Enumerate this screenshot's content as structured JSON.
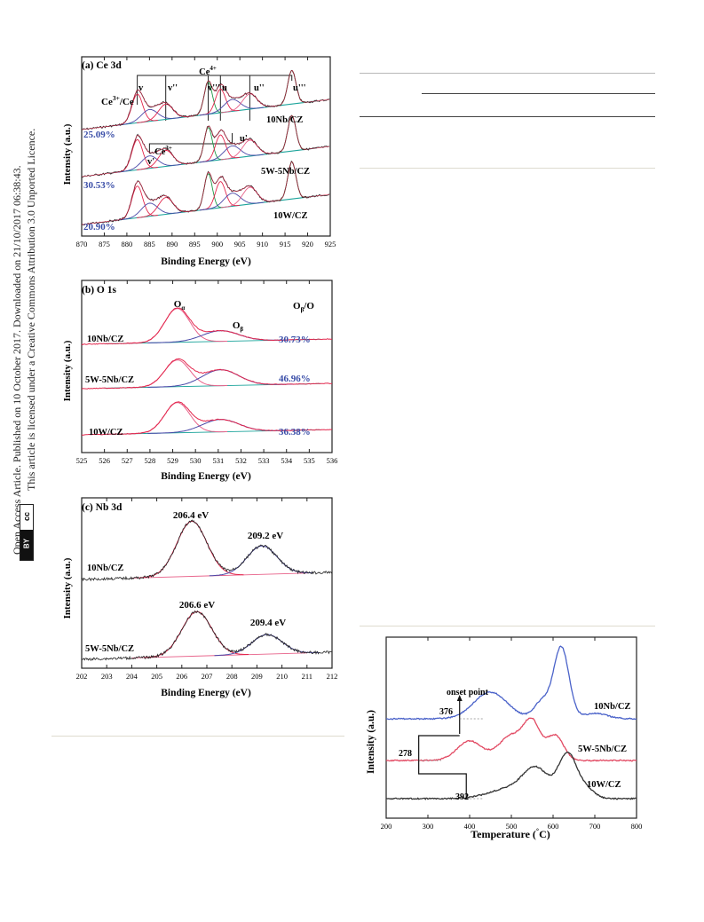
{
  "license": {
    "line1": "Open Access Article. Published on 10 October 2017. Downloaded on 21/10/2017 06:38:43.",
    "line2": "This article is licensed under a Creative Commons Attribution 3.0 Unported Licence.",
    "cc_label": "cc",
    "by_label": "BY"
  },
  "colors": {
    "data": "#222222",
    "fit_red": "#e3264c",
    "fit_blue": "#4a48a8",
    "fit_green": "#1f9a4a",
    "fit_pink": "#e8628a",
    "baseline": "#1aa39a",
    "ratio_text": "#3a4ea8",
    "tpd_blue": "#4a62c9",
    "tpd_red": "#e24a63",
    "tpd_dark": "#333333"
  },
  "chart_data": [
    {
      "id": "ce3d",
      "type": "line",
      "title": "(a) Ce 3d",
      "xlabel": "Binding Energy (eV)",
      "ylabel": "Intensity (a.u.)",
      "xlim": [
        870,
        925
      ],
      "x_reversed": false,
      "xticks": [
        870,
        875,
        880,
        885,
        890,
        895,
        900,
        905,
        910,
        915,
        920,
        925
      ],
      "ratio_header": "Ce3+/Ce",
      "ratio_header_parts": [
        "Ce",
        "3+",
        "/Ce"
      ],
      "group_labels": {
        "ce4": "Ce4+",
        "ce4_parts": [
          "Ce",
          "4+"
        ],
        "ce3": "Ce3+",
        "ce3_parts": [
          "Ce",
          "3+"
        ]
      },
      "peak_labels": {
        "v": "v",
        "v2": "v''",
        "v3": "v'''",
        "u": "u",
        "u2": "u''",
        "u3": "u'''",
        "v1": "v'",
        "u1": "u'"
      },
      "peak_positions": {
        "v": 882.3,
        "v1": 885.0,
        "v2": 888.6,
        "v3": 898.0,
        "u": 900.7,
        "u1": 903.3,
        "u2": 907.2,
        "u3": 916.5
      },
      "series": [
        {
          "name": "10Nb/CZ",
          "ratio": "25.09%"
        },
        {
          "name": "5W-5Nb/CZ",
          "ratio": "30.53%"
        },
        {
          "name": "10W/CZ",
          "ratio": "20.90%"
        }
      ]
    },
    {
      "id": "o1s",
      "type": "line",
      "title": "(b) O 1s",
      "xlabel": "Binding Energy (eV)",
      "ylabel": "Intensity (a.u.)",
      "xlim": [
        525,
        536
      ],
      "xticks": [
        525,
        526,
        527,
        528,
        529,
        530,
        531,
        532,
        533,
        534,
        535,
        536
      ],
      "peak_labels": {
        "alpha": "Oα",
        "alpha_parts": [
          "O",
          "α"
        ],
        "beta": "Oβ",
        "beta_parts": [
          "O",
          "β"
        ]
      },
      "peak_positions": {
        "alpha": 529.2,
        "beta": 531.1
      },
      "ratio_header": "Oβ/O",
      "ratio_header_parts": [
        "O",
        "β",
        "/O"
      ],
      "series": [
        {
          "name": "10Nb/CZ",
          "ratio": "30.73%"
        },
        {
          "name": "5W-5Nb/CZ",
          "ratio": "46.96%"
        },
        {
          "name": "10W/CZ",
          "ratio": "36.38%"
        }
      ]
    },
    {
      "id": "nb3d",
      "type": "line",
      "title": "(c) Nb 3d",
      "xlabel": "Binding Energy (eV)",
      "ylabel": "Intensity (a.u.)",
      "xlim": [
        202,
        212
      ],
      "xticks": [
        202,
        203,
        204,
        205,
        206,
        207,
        208,
        209,
        210,
        211,
        212
      ],
      "series": [
        {
          "name": "10Nb/CZ",
          "peaks": [
            206.4,
            209.2
          ],
          "peak_labels": [
            "206.4 eV",
            "209.2 eV"
          ]
        },
        {
          "name": "5W-5Nb/CZ",
          "peaks": [
            206.6,
            209.4
          ],
          "peak_labels": [
            "206.6 eV",
            "209.4 eV"
          ]
        }
      ]
    },
    {
      "id": "tpd",
      "type": "line",
      "title": "",
      "xlabel": "Temperature (°C)",
      "xlabel_parts": [
        "Temperature (",
        "°",
        "C)"
      ],
      "ylabel": "Intensity (a.u.)",
      "xlim": [
        200,
        800
      ],
      "xticks": [
        200,
        300,
        400,
        500,
        600,
        700,
        800
      ],
      "onset_label": "onset point",
      "series": [
        {
          "name": "10Nb/CZ",
          "onset": 376,
          "onset_label": "376",
          "peak_T": 620
        },
        {
          "name": "5W-5Nb/CZ",
          "onset": 278,
          "onset_label": "278",
          "peak_T": 550
        },
        {
          "name": "10W/CZ",
          "onset": 392,
          "onset_label": "392",
          "peak_T": 638
        }
      ]
    }
  ]
}
